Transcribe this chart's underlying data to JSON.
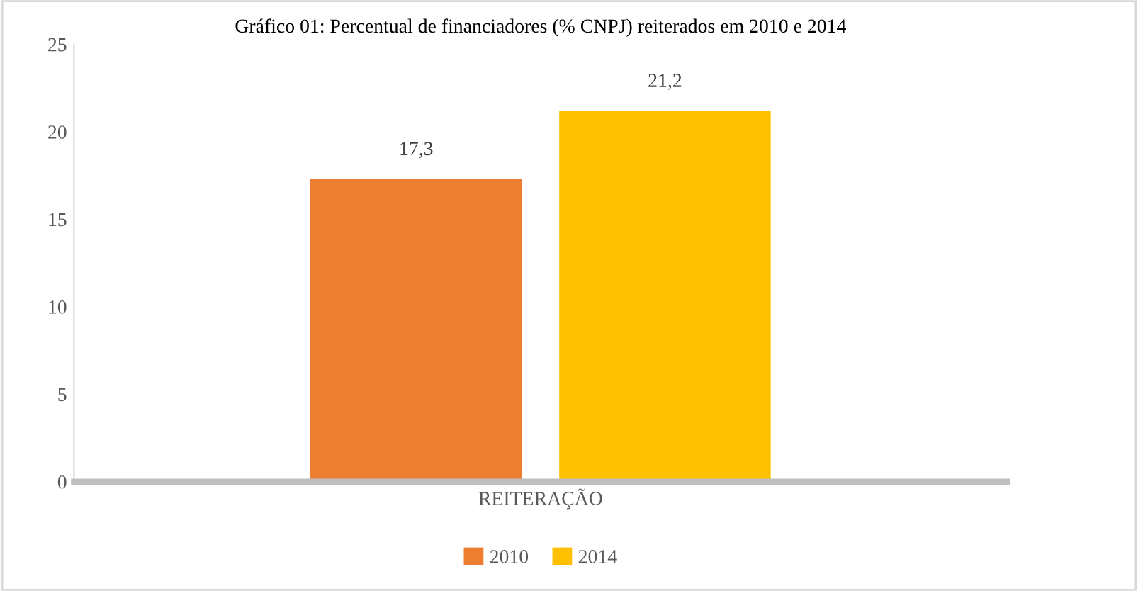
{
  "chart_data": {
    "type": "bar",
    "title": "Gráfico 01: Percentual de financiadores (% CNPJ) reiterados em 2010 e 2014",
    "categories": [
      "REITERAÇÃO"
    ],
    "series": [
      {
        "name": "2010",
        "color": "#ed7d31",
        "values": [
          17.3
        ],
        "value_labels": [
          "17,3"
        ]
      },
      {
        "name": "2014",
        "color": "#ffc000",
        "values": [
          21.2
        ],
        "value_labels": [
          "21,2"
        ]
      }
    ],
    "ylim": [
      0,
      25
    ],
    "yticks": [
      0,
      5,
      10,
      15,
      20,
      25
    ],
    "grid": false,
    "legend": "bottom"
  }
}
